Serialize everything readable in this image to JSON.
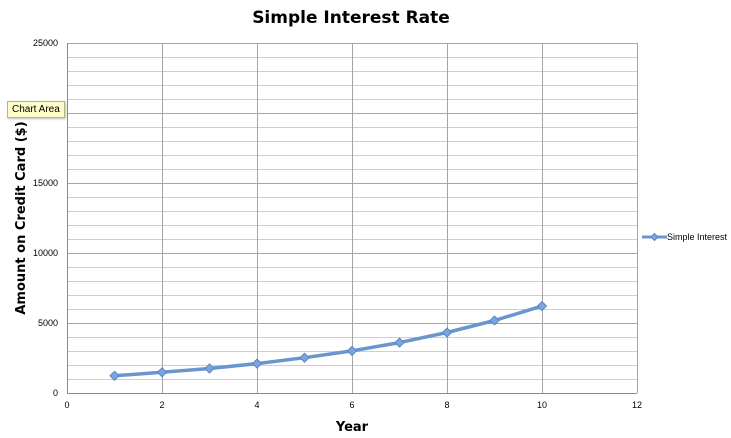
{
  "tooltip": {
    "text": "Chart Area"
  },
  "colors": {
    "series": "#6a96d0",
    "series_marker": "#7aa6dd",
    "grid_major": "#a6a6a6",
    "grid_minor": "#cfcfcf",
    "axis": "#8c8c8c"
  },
  "chart_data": {
    "type": "scatter",
    "title": "Simple Interest Rate",
    "xlabel": "Year",
    "ylabel": "Amount on Credit Card ($)",
    "xlim": [
      0,
      12
    ],
    "ylim": [
      0,
      25000
    ],
    "x_ticks": [
      0,
      2,
      4,
      6,
      8,
      10,
      12
    ],
    "y_ticks": [
      0,
      5000,
      10000,
      15000,
      25000
    ],
    "y_minor_step": 1000,
    "grid": true,
    "legend_position": "right",
    "series": [
      {
        "name": "Simple Interest",
        "x": [
          1,
          2,
          3,
          4,
          5,
          6,
          7,
          8,
          9,
          10
        ],
        "y": [
          1230,
          1480,
          1750,
          2100,
          2520,
          3010,
          3600,
          4320,
          5180,
          6210
        ]
      }
    ]
  }
}
